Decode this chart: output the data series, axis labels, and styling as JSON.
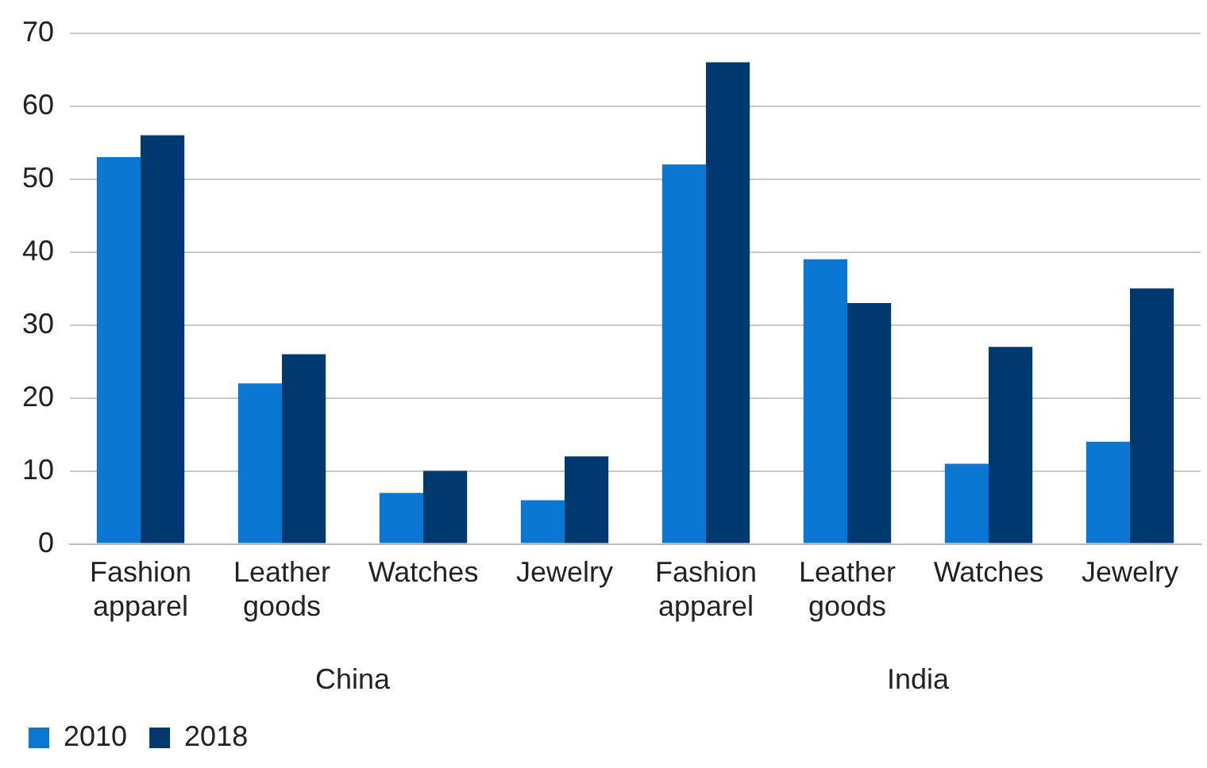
{
  "chart_data": {
    "type": "bar",
    "categories": [
      "Fashion apparel",
      "Leather goods",
      "Watches",
      "Jewelry",
      "Fashion apparel",
      "Leather goods",
      "Watches",
      "Jewelry"
    ],
    "series": [
      {
        "name": "2010",
        "color": "#0a78d2",
        "values": [
          53,
          22,
          7,
          6,
          52,
          39,
          11,
          14
        ]
      },
      {
        "name": "2018",
        "color": "#00396f",
        "values": [
          56,
          26,
          10,
          12,
          66,
          33,
          27,
          35
        ]
      }
    ],
    "annotations": [
      "China",
      "India"
    ],
    "ylim": [
      0,
      70
    ],
    "yticks": [
      0,
      10,
      20,
      30,
      40,
      50,
      60,
      70
    ],
    "grid": "y",
    "legend": "bottom left"
  }
}
